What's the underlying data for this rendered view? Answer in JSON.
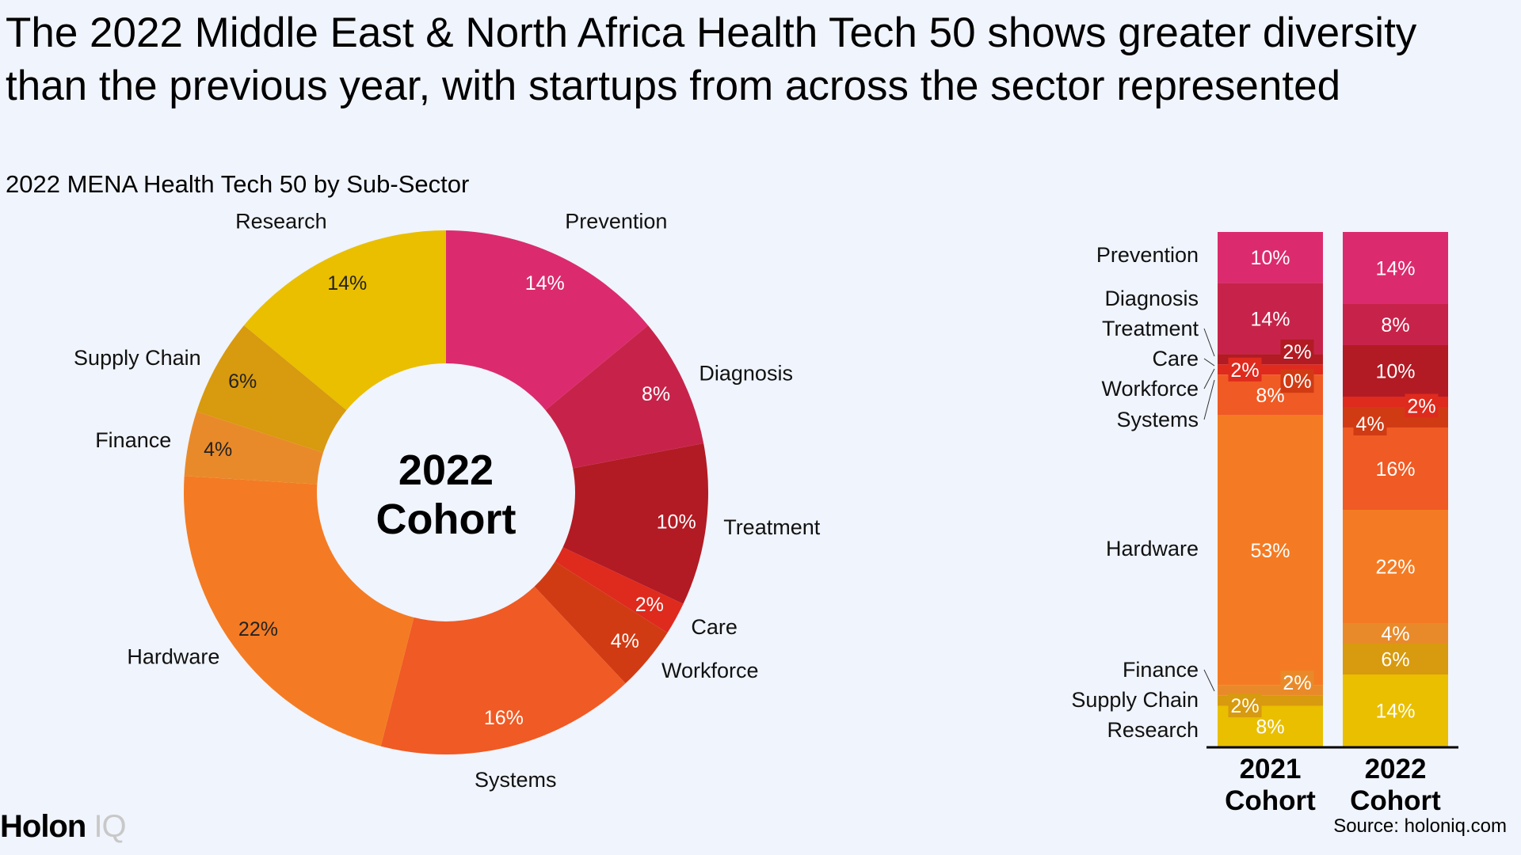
{
  "title": "The 2022 Middle East & North Africa Health Tech 50 shows greater diversity than the previous year, with startups from across the sector represented",
  "subtitle": "2022 MENA Health Tech 50 by Sub-Sector",
  "source": "Source: holoniq.com",
  "logo": {
    "main": "Holon",
    "accent": "IQ"
  },
  "chart_data": [
    {
      "type": "pie",
      "variant": "donut",
      "center_label": [
        "2022",
        "Cohort"
      ],
      "categories": [
        "Prevention",
        "Diagnosis",
        "Treatment",
        "Care",
        "Workforce",
        "Systems",
        "Hardware",
        "Finance",
        "Supply Chain",
        "Research"
      ],
      "values": [
        14,
        8,
        10,
        2,
        4,
        16,
        22,
        4,
        6,
        14
      ],
      "unit": "%",
      "colors": [
        "#DB2B6E",
        "#C7234A",
        "#B21B24",
        "#DF2A1E",
        "#D13B14",
        "#F05A24",
        "#F47B23",
        "#E98A2A",
        "#D89A0E",
        "#E9BF00"
      ]
    },
    {
      "type": "bar",
      "stacked": true,
      "normalized": true,
      "categories": [
        "2021 Cohort",
        "2022 Cohort"
      ],
      "category_labels": [
        [
          "2021",
          "Cohort"
        ],
        [
          "2022",
          "Cohort"
        ]
      ],
      "series": [
        {
          "name": "Prevention",
          "values": [
            10,
            14
          ],
          "color": "#DB2B6E"
        },
        {
          "name": "Diagnosis",
          "values": [
            14,
            8
          ],
          "color": "#C7234A"
        },
        {
          "name": "Treatment",
          "values": [
            2,
            10
          ],
          "color": "#B21B24"
        },
        {
          "name": "Care",
          "values": [
            2,
            2
          ],
          "color": "#DF2A1E"
        },
        {
          "name": "Workforce",
          "values": [
            0,
            4
          ],
          "color": "#D13B14"
        },
        {
          "name": "Systems",
          "values": [
            8,
            16
          ],
          "color": "#F05A24"
        },
        {
          "name": "Hardware",
          "values": [
            53,
            22
          ],
          "color": "#F47B23"
        },
        {
          "name": "Finance",
          "values": [
            2,
            4
          ],
          "color": "#E98A2A"
        },
        {
          "name": "Supply Chain",
          "values": [
            2,
            6
          ],
          "color": "#D89A0E"
        },
        {
          "name": "Research",
          "values": [
            8,
            14
          ],
          "color": "#E9BF00"
        }
      ],
      "unit": "%",
      "legend": "left"
    }
  ]
}
